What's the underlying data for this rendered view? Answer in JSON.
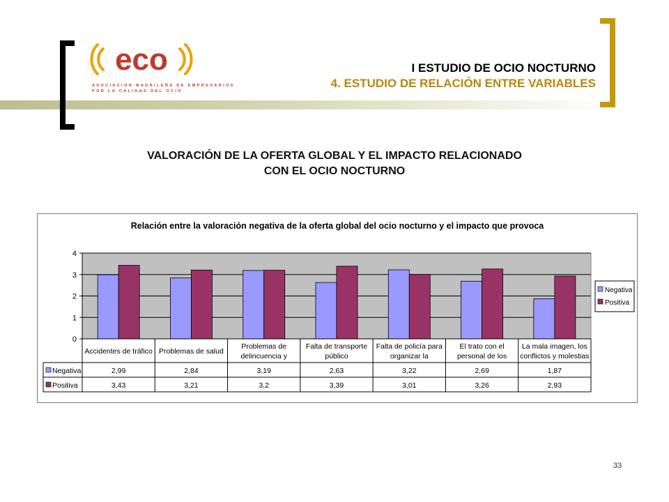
{
  "header": {
    "line1": "I ESTUDIO DE OCIO NOCTURNO",
    "line2": "4. ESTUDIO DE RELACIÓN ENTRE VARIABLES"
  },
  "logo": {
    "text": "eco",
    "tagline1": "ASOCIACIÓN MADRILEÑA DE EMPRESARIOS",
    "tagline2": "POR LA CALIDAD DEL OCIO"
  },
  "page_title": {
    "line1": "VALORACIÓN DE LA OFERTA GLOBAL Y EL IMPACTO RELACIONADO",
    "line2": "CON EL OCIO NOCTURNO"
  },
  "colors": {
    "negativa": "#9999ff",
    "positiva": "#993366",
    "plot_bg": "#c0c0c0",
    "accent": "#b8860b"
  },
  "chart_data": {
    "type": "bar",
    "title": "Relación entre la valoración negativa de la oferta global del ocio nocturno y el impacto que provoca",
    "ylim": [
      0,
      4
    ],
    "yticks": [
      "0",
      "1",
      "2",
      "3",
      "4"
    ],
    "grid": true,
    "legend": "right",
    "categories": [
      [
        "Accidentes de tráfico"
      ],
      [
        "Problemas de salud"
      ],
      [
        "Problemas de",
        "delincuencia y"
      ],
      [
        "Falta de transporte",
        "público"
      ],
      [
        "Falta de policía para",
        "organizar la"
      ],
      [
        "El trato con el",
        "personal de los"
      ],
      [
        "La mala imagen, los",
        "conflictos y molestias"
      ]
    ],
    "series": [
      {
        "name": "Negativa",
        "values": [
          2.99,
          2.84,
          3.19,
          2.63,
          3.22,
          2.69,
          1.87
        ],
        "labels": [
          "2,99",
          "2,84",
          "3,19",
          "2,63",
          "3,22",
          "2,69",
          "1,87"
        ]
      },
      {
        "name": "Positiva",
        "values": [
          3.43,
          3.21,
          3.2,
          3.39,
          3.01,
          3.26,
          2.93
        ],
        "labels": [
          "3,43",
          "3,21",
          "3,2",
          "3,39",
          "3,01",
          "3,26",
          "2,93"
        ]
      }
    ]
  },
  "page_number": "33"
}
